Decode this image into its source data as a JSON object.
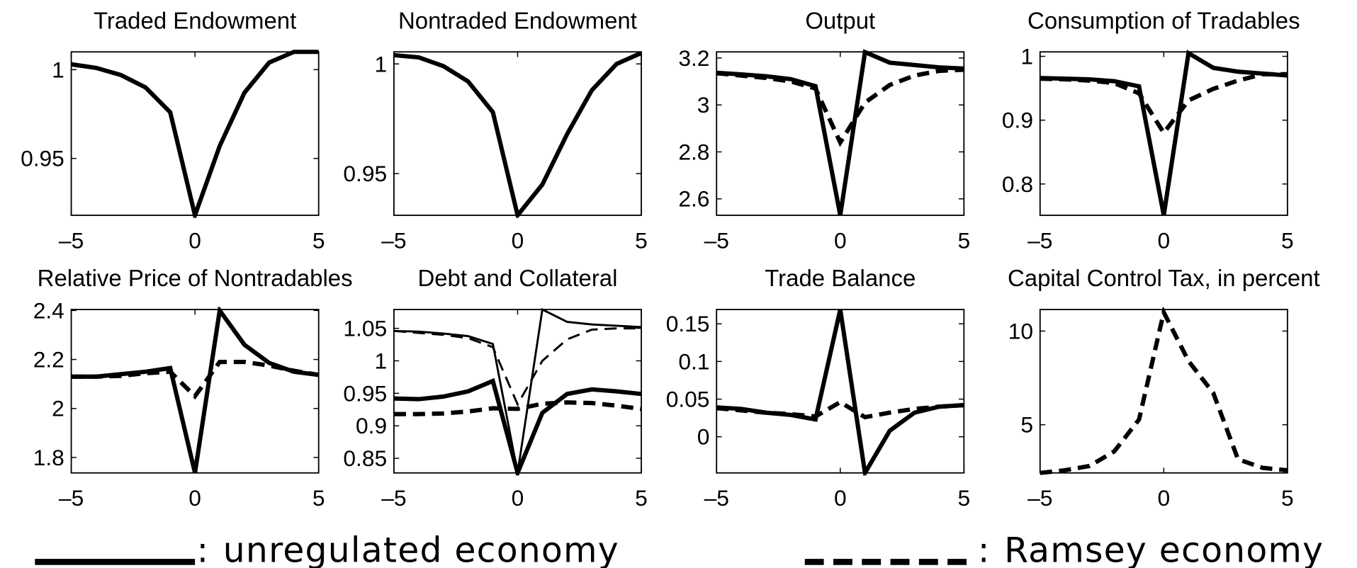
{
  "chart_data": [
    {
      "type": "line",
      "title": "Traded Endowment",
      "x": [
        -5,
        -4,
        -3,
        -2,
        -1,
        0,
        1,
        2,
        3,
        4,
        5
      ],
      "xlim": [
        -5,
        5
      ],
      "xticks": [
        {
          "value": -5,
          "label": "–5"
        },
        0,
        5
      ],
      "ylim": [
        0.918,
        1.01
      ],
      "yticks": [
        0.95,
        1
      ],
      "series": [
        {
          "style": "solid",
          "width": "thick",
          "color": "#000",
          "values": [
            1.003,
            1.001,
            0.997,
            0.99,
            0.976,
            0.918,
            0.957,
            0.987,
            1.004,
            1.01,
            1.01
          ]
        }
      ]
    },
    {
      "type": "line",
      "title": "Nontraded Endowment",
      "x": [
        -5,
        -4,
        -3,
        -2,
        -1,
        0,
        1,
        2,
        3,
        4,
        5
      ],
      "xlim": [
        -5,
        5
      ],
      "xticks": [
        {
          "value": -5,
          "label": "–5"
        },
        0,
        5
      ],
      "ylim": [
        0.931,
        1.0055
      ],
      "yticks": [
        0.95,
        1
      ],
      "series": [
        {
          "style": "solid",
          "width": "thick",
          "color": "#000",
          "values": [
            1.004,
            1.003,
            0.999,
            0.992,
            0.978,
            0.931,
            0.945,
            0.968,
            0.988,
            1.0,
            1.005
          ]
        }
      ]
    },
    {
      "type": "line",
      "title": "Output",
      "x": [
        -5,
        -4,
        -3,
        -2,
        -1,
        0,
        1,
        2,
        3,
        4,
        5
      ],
      "xlim": [
        -5,
        5
      ],
      "xticks": [
        {
          "value": -5,
          "label": "–5"
        },
        0,
        5
      ],
      "ylim": [
        2.53,
        3.226
      ],
      "yticks": [
        2.6,
        2.8,
        3,
        3.2
      ],
      "series": [
        {
          "style": "solid",
          "width": "thick",
          "color": "#000",
          "values": [
            3.137,
            3.13,
            3.122,
            3.11,
            3.08,
            2.53,
            3.225,
            3.18,
            3.17,
            3.16,
            3.155
          ]
        },
        {
          "style": "dashed",
          "width": "thick",
          "color": "#000",
          "values": [
            3.135,
            3.125,
            3.115,
            3.1,
            3.07,
            2.84,
            3.01,
            3.085,
            3.125,
            3.145,
            3.15
          ]
        }
      ]
    },
    {
      "type": "line",
      "title": "Consumption of Tradables",
      "x": [
        -5,
        -4,
        -3,
        -2,
        -1,
        0,
        1,
        2,
        3,
        4,
        5
      ],
      "xlim": [
        -5,
        5
      ],
      "xticks": [
        {
          "value": -5,
          "label": "–5"
        },
        0,
        5
      ],
      "ylim": [
        0.751,
        1.007
      ],
      "yticks": [
        0.8,
        0.9,
        1
      ],
      "series": [
        {
          "style": "solid",
          "width": "thick",
          "color": "#000",
          "values": [
            0.966,
            0.965,
            0.964,
            0.961,
            0.953,
            0.751,
            1.005,
            0.982,
            0.976,
            0.973,
            0.97
          ]
        },
        {
          "style": "dashed",
          "width": "thick",
          "color": "#000",
          "values": [
            0.965,
            0.964,
            0.962,
            0.958,
            0.942,
            0.88,
            0.931,
            0.949,
            0.962,
            0.972,
            0.972
          ]
        }
      ]
    },
    {
      "type": "line",
      "title": "Relative Price of Nontradables",
      "x": [
        -5,
        -4,
        -3,
        -2,
        -1,
        0,
        1,
        2,
        3,
        4,
        5
      ],
      "xlim": [
        -5,
        5
      ],
      "xticks": [
        {
          "value": -5,
          "label": "–5"
        },
        0,
        5
      ],
      "ylim": [
        1.737,
        2.404
      ],
      "yticks": [
        1.8,
        2,
        2.2,
        2.4
      ],
      "series": [
        {
          "style": "solid",
          "width": "thick",
          "color": "#000",
          "values": [
            2.13,
            2.13,
            2.14,
            2.15,
            2.165,
            1.737,
            2.4,
            2.26,
            2.186,
            2.15,
            2.137
          ]
        },
        {
          "style": "dashed",
          "width": "thick",
          "color": "#000",
          "values": [
            2.13,
            2.13,
            2.133,
            2.144,
            2.15,
            2.05,
            2.19,
            2.19,
            2.175,
            2.154,
            2.137
          ]
        }
      ]
    },
    {
      "type": "line",
      "title": "Debt and Collateral",
      "x": [
        -5,
        -4,
        -3,
        -2,
        -1,
        0,
        1,
        2,
        3,
        4,
        5
      ],
      "xlim": [
        -5,
        5
      ],
      "xticks": [
        {
          "value": -5,
          "label": "–5"
        },
        0,
        5
      ],
      "ylim": [
        0.8275,
        1.079
      ],
      "yticks": [
        0.85,
        0.9,
        0.95,
        1,
        1.05
      ],
      "series": [
        {
          "style": "solid",
          "width": "thin",
          "color": "#000",
          "values": [
            1.046,
            1.045,
            1.042,
            1.038,
            1.026,
            0.8275,
            1.079,
            1.06,
            1.056,
            1.054,
            1.052
          ]
        },
        {
          "style": "dashed",
          "width": "thin",
          "color": "#000",
          "values": [
            1.046,
            1.043,
            1.04,
            1.035,
            1.021,
            0.933,
            1.0,
            1.033,
            1.048,
            1.05,
            1.05
          ]
        },
        {
          "style": "solid",
          "width": "thick",
          "color": "#000",
          "values": [
            0.942,
            0.941,
            0.945,
            0.953,
            0.969,
            0.8275,
            0.92,
            0.949,
            0.956,
            0.953,
            0.949
          ]
        },
        {
          "style": "dashed",
          "width": "thick",
          "color": "#000",
          "values": [
            0.918,
            0.918,
            0.919,
            0.922,
            0.927,
            0.926,
            0.934,
            0.936,
            0.935,
            0.931,
            0.926
          ]
        }
      ]
    },
    {
      "type": "line",
      "title": "Trade Balance",
      "x": [
        -5,
        -4,
        -3,
        -2,
        -1,
        0,
        1,
        2,
        3,
        4,
        5
      ],
      "xlim": [
        -5,
        5
      ],
      "xticks": [
        {
          "value": -5,
          "label": "–5"
        },
        0,
        5
      ],
      "ylim": [
        -0.048,
        0.169
      ],
      "yticks": [
        0,
        0.05,
        0.1,
        0.15
      ],
      "series": [
        {
          "style": "solid",
          "width": "thick",
          "color": "#000",
          "values": [
            0.039,
            0.037,
            0.032,
            0.029,
            0.023,
            0.169,
            -0.048,
            0.008,
            0.032,
            0.04,
            0.042
          ]
        },
        {
          "style": "dashed",
          "width": "thick",
          "color": "#000",
          "values": [
            0.038,
            0.035,
            0.032,
            0.03,
            0.027,
            0.046,
            0.026,
            0.032,
            0.037,
            0.04,
            0.042
          ]
        }
      ]
    },
    {
      "type": "line",
      "title": "Capital Control Tax, in percent",
      "x": [
        -5,
        -4,
        -3,
        -2,
        -1,
        0,
        1,
        2,
        3,
        4,
        5
      ],
      "xlim": [
        -5,
        5
      ],
      "xticks": [
        {
          "value": -5,
          "label": "–5"
        },
        0,
        5
      ],
      "ylim": [
        2.43,
        11.15
      ],
      "yticks": [
        5,
        10
      ],
      "series": [
        {
          "style": "dashed",
          "width": "thick",
          "color": "#000",
          "values": [
            2.43,
            2.57,
            2.8,
            3.58,
            5.28,
            11.0,
            8.4,
            6.7,
            3.16,
            2.7,
            2.57
          ]
        }
      ]
    }
  ],
  "legend_separator": ":",
  "legend": [
    {
      "name": "unregulated economy",
      "style": "solid"
    },
    {
      "name": "Ramsey economy",
      "style": "dashed"
    }
  ]
}
